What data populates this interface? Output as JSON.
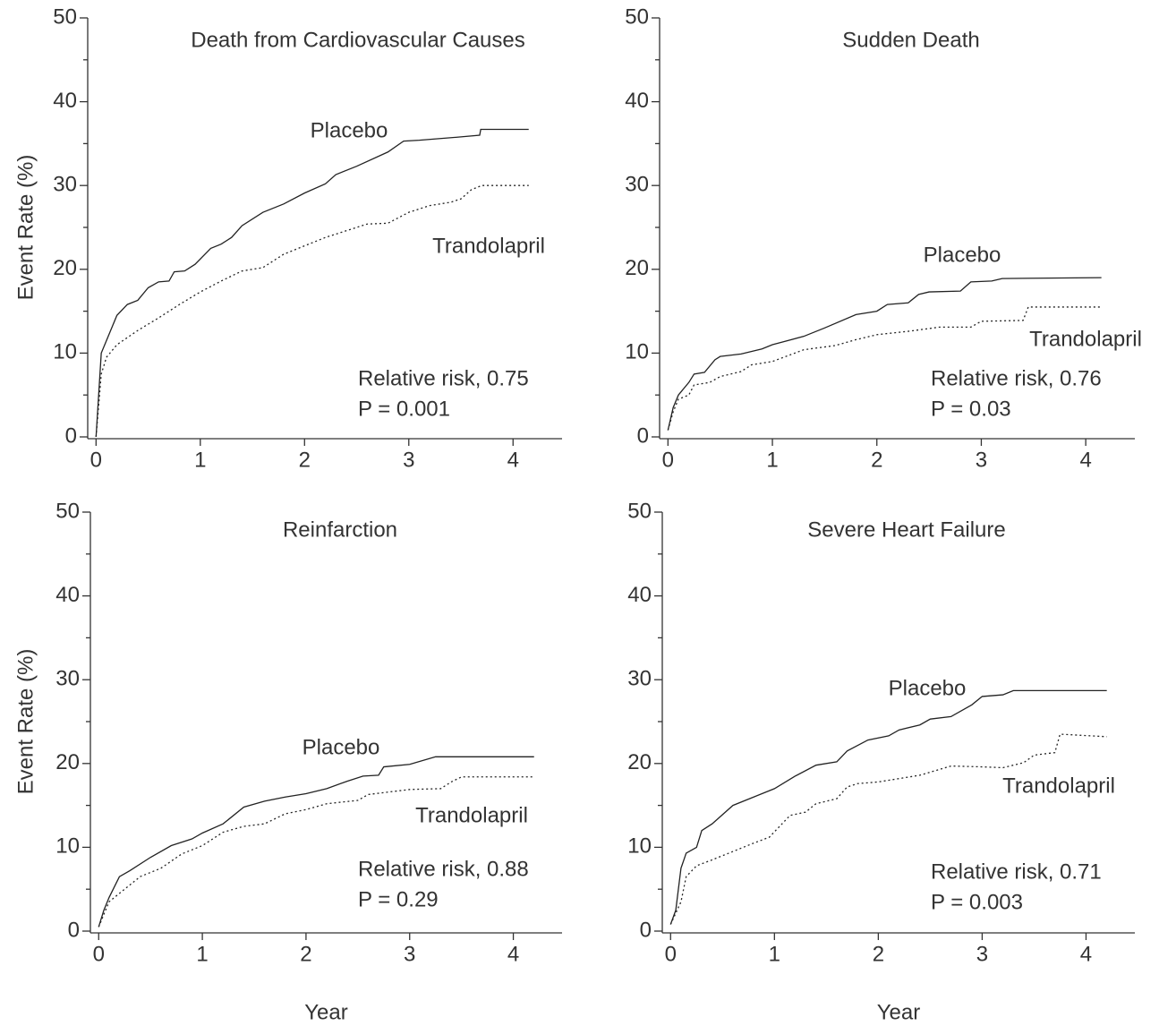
{
  "chart_data": [
    {
      "type": "line",
      "title": "Death from Cardiovascular Causes",
      "y_label": "Event Rate (%)",
      "xlim": [
        -0.08,
        4.47
      ],
      "xticks": [
        0,
        1,
        2,
        3,
        4
      ],
      "ylim": [
        0,
        50
      ],
      "yticks": [
        0,
        10,
        20,
        30,
        40,
        50
      ],
      "yminor_ticks": [
        5,
        15,
        25,
        35,
        45
      ],
      "annotations": [
        "Relative risk, 0.75",
        "P = 0.001"
      ],
      "series": [
        {
          "name": "Placebo",
          "color": "#222222",
          "line_style": "solid",
          "x": [
            0,
            0.05,
            0.1,
            0.2,
            0.3,
            0.4,
            0.5,
            0.6,
            0.7,
            0.75,
            0.85,
            0.95,
            1.1,
            1.2,
            1.3,
            1.4,
            1.6,
            1.8,
            2.0,
            2.2,
            2.3,
            2.5,
            2.8,
            2.95,
            3.1,
            3.5,
            3.68,
            3.69,
            4.15
          ],
          "values": [
            0,
            10,
            11.5,
            14.5,
            15.8,
            16.3,
            17.8,
            18.5,
            18.6,
            19.7,
            19.8,
            20.6,
            22.5,
            23,
            23.8,
            25.2,
            26.8,
            27.8,
            29.1,
            30.2,
            31.3,
            32.3,
            34,
            35.3,
            35.4,
            35.8,
            36,
            36.7,
            36.7
          ]
        },
        {
          "name": "Trandolapril",
          "color": "#222222",
          "line_style": "dotted",
          "x": [
            0,
            0.05,
            0.1,
            0.2,
            0.4,
            0.6,
            0.8,
            1.0,
            1.2,
            1.4,
            1.6,
            1.8,
            2.0,
            2.2,
            2.5,
            2.6,
            2.8,
            3.0,
            3.2,
            3.4,
            3.5,
            3.6,
            3.7,
            4.15
          ],
          "values": [
            0,
            7.5,
            9.5,
            11,
            12.7,
            14.2,
            15.8,
            17.3,
            18.6,
            19.8,
            20.2,
            21.8,
            22.8,
            23.8,
            25,
            25.4,
            25.5,
            26.8,
            27.6,
            28,
            28.4,
            29.5,
            30,
            30
          ]
        }
      ]
    },
    {
      "type": "line",
      "title": "Sudden Death",
      "xlim": [
        -0.08,
        4.47
      ],
      "xticks": [
        0,
        1,
        2,
        3,
        4
      ],
      "ylim": [
        0,
        50
      ],
      "yticks": [
        0,
        10,
        20,
        30,
        40,
        50
      ],
      "yminor_ticks": [
        5,
        15,
        25,
        35,
        45
      ],
      "annotations": [
        "Relative risk, 0.76",
        "P = 0.03"
      ],
      "series": [
        {
          "name": "Placebo",
          "color": "#222222",
          "line_style": "solid",
          "x": [
            0,
            0.05,
            0.1,
            0.2,
            0.25,
            0.35,
            0.45,
            0.5,
            0.7,
            0.9,
            1.0,
            1.3,
            1.5,
            1.8,
            2.0,
            2.1,
            2.3,
            2.4,
            2.5,
            2.8,
            2.9,
            3.1,
            3.2,
            4.15
          ],
          "values": [
            0.8,
            3.5,
            5,
            6.5,
            7.5,
            7.7,
            9.2,
            9.6,
            9.9,
            10.5,
            11,
            12,
            13,
            14.6,
            15,
            15.8,
            16,
            17,
            17.3,
            17.4,
            18.5,
            18.6,
            18.9,
            19
          ]
        },
        {
          "name": "Trandolapril",
          "color": "#222222",
          "line_style": "dotted",
          "x": [
            0,
            0.05,
            0.1,
            0.2,
            0.25,
            0.4,
            0.5,
            0.7,
            0.8,
            1.0,
            1.3,
            1.6,
            1.8,
            2.0,
            2.3,
            2.6,
            2.9,
            3.0,
            3.4,
            3.45,
            4.15
          ],
          "values": [
            0.8,
            3,
            4.5,
            5,
            6.2,
            6.5,
            7.2,
            7.8,
            8.6,
            9,
            10.4,
            10.9,
            11.6,
            12.2,
            12.6,
            13.1,
            13.1,
            13.8,
            13.9,
            15.5,
            15.5
          ]
        }
      ]
    },
    {
      "type": "line",
      "title": "Reinfarction",
      "y_label": "Event Rate (%)",
      "x_label": "Year",
      "xlim": [
        -0.08,
        4.47
      ],
      "xticks": [
        0,
        1,
        2,
        3,
        4
      ],
      "ylim": [
        0,
        50
      ],
      "yticks": [
        0,
        10,
        20,
        30,
        40,
        50
      ],
      "yminor_ticks": [
        5,
        15,
        25,
        35,
        45
      ],
      "annotations": [
        "Relative risk, 0.88",
        "P = 0.29"
      ],
      "series": [
        {
          "name": "Placebo",
          "color": "#222222",
          "line_style": "solid",
          "x": [
            0,
            0.05,
            0.1,
            0.2,
            0.3,
            0.5,
            0.7,
            0.9,
            1.0,
            1.2,
            1.4,
            1.6,
            1.8,
            2.0,
            2.2,
            2.4,
            2.55,
            2.7,
            2.75,
            3.0,
            3.25,
            4.2
          ],
          "values": [
            0.5,
            2.5,
            4,
            6.5,
            7.2,
            8.8,
            10.2,
            11,
            11.7,
            12.8,
            14.8,
            15.5,
            16,
            16.4,
            17,
            17.9,
            18.5,
            18.6,
            19.6,
            19.9,
            20.8,
            20.8
          ]
        },
        {
          "name": "Trandolapril",
          "color": "#222222",
          "line_style": "dotted",
          "x": [
            0,
            0.1,
            0.2,
            0.4,
            0.6,
            0.8,
            1.0,
            1.2,
            1.4,
            1.6,
            1.8,
            2.0,
            2.2,
            2.5,
            2.6,
            3.0,
            3.3,
            3.4,
            3.5,
            4.2
          ],
          "values": [
            0.5,
            3.5,
            4.5,
            6.5,
            7.5,
            9.2,
            10.2,
            11.8,
            12.5,
            12.8,
            14,
            14.5,
            15.2,
            15.6,
            16.3,
            16.9,
            17,
            17.8,
            18.4,
            18.4
          ]
        }
      ]
    },
    {
      "type": "line",
      "title": "Severe Heart Failure",
      "x_label": "Year",
      "xlim": [
        -0.08,
        4.47
      ],
      "xticks": [
        0,
        1,
        2,
        3,
        4
      ],
      "ylim": [
        0,
        50
      ],
      "yticks": [
        0,
        10,
        20,
        30,
        40,
        50
      ],
      "yminor_ticks": [
        5,
        15,
        25,
        35,
        45
      ],
      "annotations": [
        "Relative risk, 0.71",
        "P = 0.003"
      ],
      "series": [
        {
          "name": "Placebo",
          "color": "#222222",
          "line_style": "solid",
          "x": [
            0,
            0.05,
            0.1,
            0.15,
            0.25,
            0.3,
            0.4,
            0.6,
            0.8,
            1.0,
            1.2,
            1.4,
            1.6,
            1.7,
            1.9,
            2.1,
            2.2,
            2.4,
            2.5,
            2.7,
            2.9,
            3.0,
            3.2,
            3.3,
            4.2
          ],
          "values": [
            0.8,
            2.5,
            7.5,
            9.3,
            10,
            12,
            12.8,
            15,
            16,
            17,
            18.5,
            19.8,
            20.2,
            21.5,
            22.8,
            23.3,
            24,
            24.6,
            25.3,
            25.6,
            27,
            28,
            28.2,
            28.7,
            28.7
          ]
        },
        {
          "name": "Trandolapril",
          "color": "#222222",
          "line_style": "dotted",
          "x": [
            0,
            0.1,
            0.15,
            0.25,
            0.4,
            0.6,
            0.8,
            0.95,
            1.05,
            1.15,
            1.3,
            1.4,
            1.6,
            1.7,
            1.8,
            2.0,
            2.4,
            2.7,
            3.0,
            3.2,
            3.4,
            3.5,
            3.7,
            3.75,
            4.2
          ],
          "values": [
            0.8,
            3.5,
            6.5,
            7.8,
            8.5,
            9.5,
            10.5,
            11.2,
            12.5,
            13.8,
            14.2,
            15.2,
            15.8,
            17.2,
            17.6,
            17.8,
            18.6,
            19.7,
            19.6,
            19.5,
            20.1,
            21,
            21.3,
            23.5,
            23.2
          ]
        }
      ]
    }
  ]
}
